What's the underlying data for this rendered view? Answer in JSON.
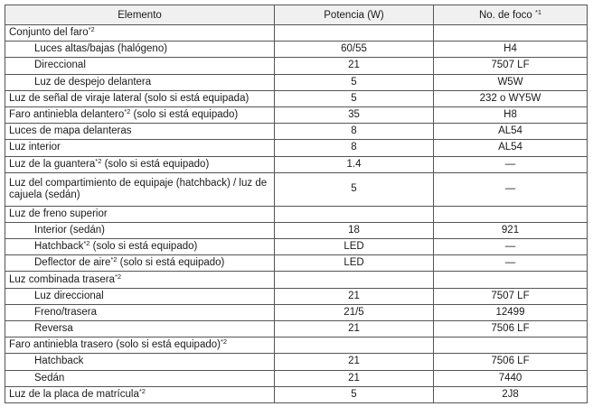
{
  "header": {
    "elemento": "Elemento",
    "potencia": "Potencia (W)",
    "foco": "No. de foco",
    "foco_sup": "*1"
  },
  "rows": [
    {
      "label": "Conjunto del faro",
      "sup": "*2",
      "suffix": "",
      "watts": "",
      "bulb": "",
      "indent": false
    },
    {
      "label": "Luces altas/bajas (halógeno)",
      "sup": "",
      "suffix": "",
      "watts": "60/55",
      "bulb": "H4",
      "indent": true
    },
    {
      "label": "Direccional",
      "sup": "",
      "suffix": "",
      "watts": "21",
      "bulb": "7507 LF",
      "indent": true
    },
    {
      "label": "Luz de despejo delantera",
      "sup": "",
      "suffix": "",
      "watts": "5",
      "bulb": "W5W",
      "indent": true
    },
    {
      "label": "Luz de señal de viraje lateral (solo si está equipada)",
      "sup": "",
      "suffix": "",
      "watts": "5",
      "bulb": "232 o WY5W",
      "indent": false
    },
    {
      "label": "Faro antiniebla delantero",
      "sup": "*2",
      "suffix": " (solo si está equipado)",
      "watts": "35",
      "bulb": "H8",
      "indent": false
    },
    {
      "label": "Luces de mapa delanteras",
      "sup": "",
      "suffix": "",
      "watts": "8",
      "bulb": "AL54",
      "indent": false
    },
    {
      "label": "Luz interior",
      "sup": "",
      "suffix": "",
      "watts": "8",
      "bulb": "AL54",
      "indent": false
    },
    {
      "label": "Luz de la guantera",
      "sup": "*2",
      "suffix": " (solo si está equipado)",
      "watts": "1.4",
      "bulb": "—",
      "indent": false
    },
    {
      "label": "Luz del compartimiento de equipaje (hatchback) / luz de cajuela (sedán)",
      "sup": "",
      "suffix": "",
      "watts": "5",
      "bulb": "—",
      "indent": false,
      "tall": true
    },
    {
      "label": "Luz de freno superior",
      "sup": "",
      "suffix": "",
      "watts": "",
      "bulb": "",
      "indent": false
    },
    {
      "label": "Interior (sedán)",
      "sup": "",
      "suffix": "",
      "watts": "18",
      "bulb": "921",
      "indent": true
    },
    {
      "label": "Hatchback",
      "sup": "*2",
      "suffix": " (solo si está equipado)",
      "watts": "LED",
      "bulb": "—",
      "indent": true
    },
    {
      "label": "Deflector de aire",
      "sup": "*2",
      "suffix": " (solo si está equipado)",
      "watts": "LED",
      "bulb": "—",
      "indent": true
    },
    {
      "label": "Luz combinada trasera",
      "sup": "*2",
      "suffix": "",
      "watts": "",
      "bulb": "",
      "indent": false
    },
    {
      "label": "Luz direccional",
      "sup": "",
      "suffix": "",
      "watts": "21",
      "bulb": "7507 LF",
      "indent": true
    },
    {
      "label": "Freno/trasera",
      "sup": "",
      "suffix": "",
      "watts": "21/5",
      "bulb": "12499",
      "indent": true
    },
    {
      "label": "Reversa",
      "sup": "",
      "suffix": "",
      "watts": "21",
      "bulb": "7506 LF",
      "indent": true
    },
    {
      "label": "Faro antiniebla trasero (solo si está equipado)",
      "sup": "*2",
      "suffix": "",
      "watts": "",
      "bulb": "",
      "indent": false
    },
    {
      "label": "Hatchback",
      "sup": "",
      "suffix": "",
      "watts": "21",
      "bulb": "7506 LF",
      "indent": true
    },
    {
      "label": "Sedán",
      "sup": "",
      "suffix": "",
      "watts": "21",
      "bulb": "7440",
      "indent": true
    },
    {
      "label": "Luz de la placa de matrícula",
      "sup": "*2",
      "suffix": "",
      "watts": "5",
      "bulb": "2J8",
      "indent": false
    }
  ]
}
